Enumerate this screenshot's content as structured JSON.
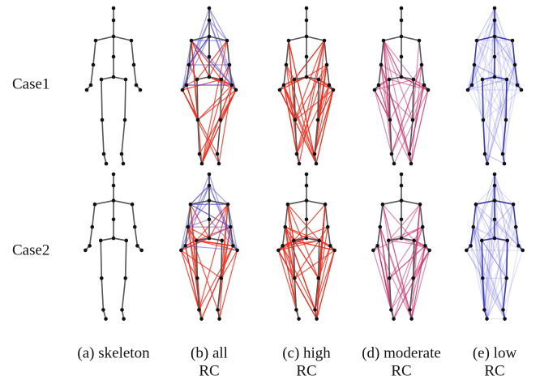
{
  "rows": [
    {
      "label": "Case1"
    },
    {
      "label": "Case2"
    }
  ],
  "columns": [
    {
      "caption": [
        "(a) skeleton"
      ]
    },
    {
      "caption": [
        "(b) all",
        "RC"
      ]
    },
    {
      "caption": [
        "(c) high",
        "RC"
      ]
    },
    {
      "caption": [
        "(d) moderate",
        "RC"
      ]
    },
    {
      "caption": [
        "(e) low",
        "RC"
      ]
    }
  ]
}
